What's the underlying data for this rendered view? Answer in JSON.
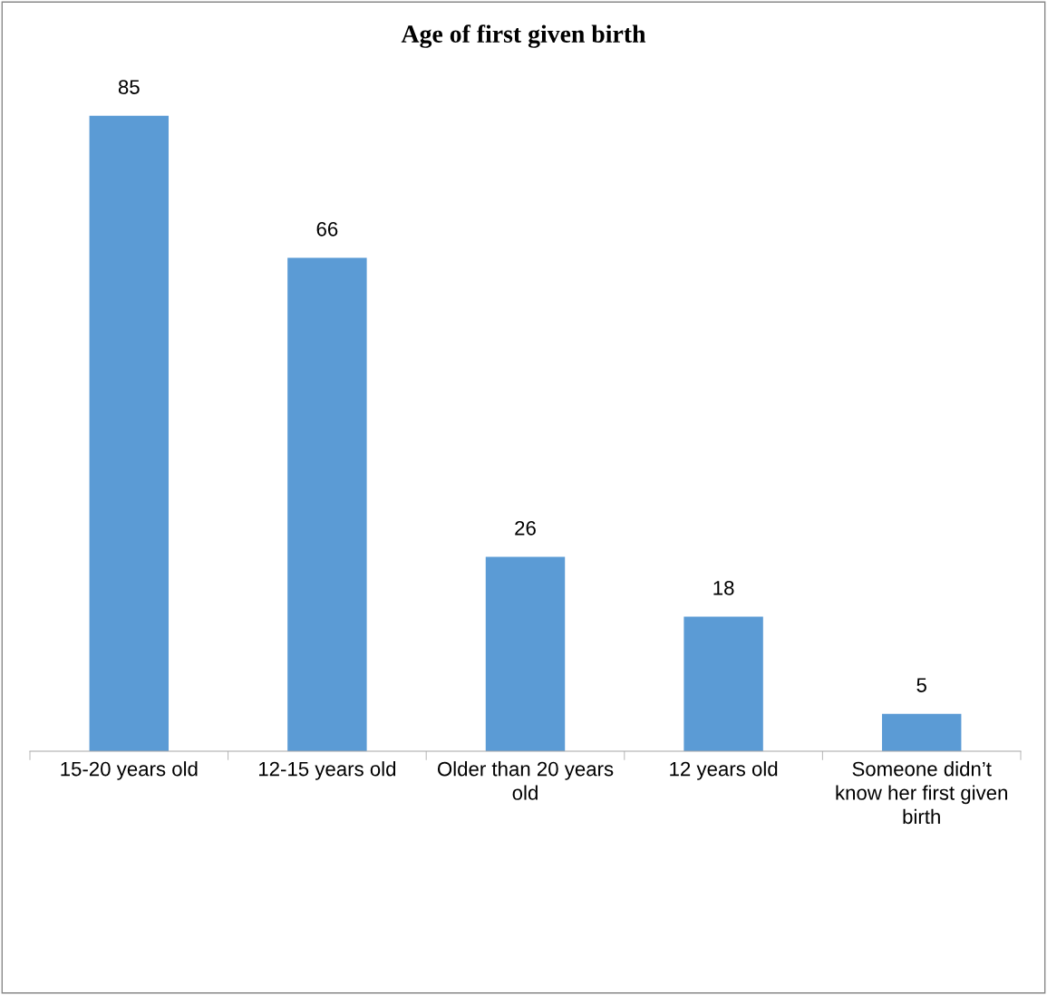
{
  "chart_data": {
    "type": "bar",
    "title": "Age of first given birth",
    "categories": [
      "15-20 years old",
      "12-15 years old",
      "Older than 20 years old",
      "12 years old",
      "Someone didn’t know her first given birth"
    ],
    "values": [
      85,
      66,
      26,
      18,
      5
    ],
    "color": "#5b9bd5",
    "data_labels": true,
    "grid": false,
    "legend": false
  }
}
